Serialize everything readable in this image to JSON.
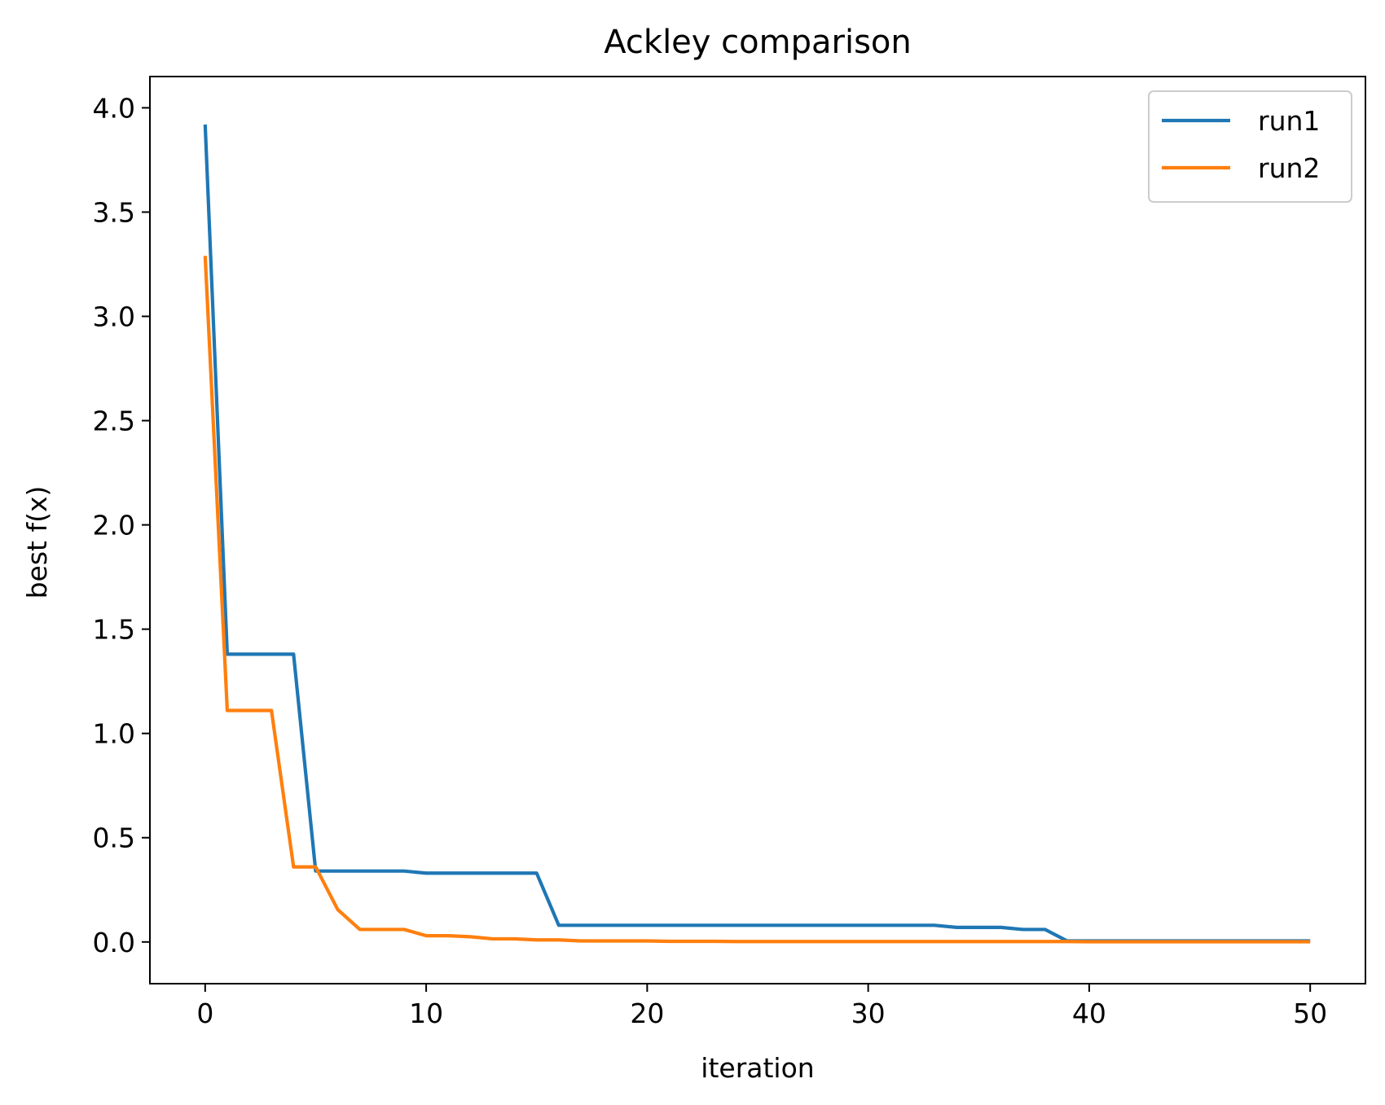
{
  "chart_data": {
    "type": "line",
    "title": "Ackley comparison",
    "xlabel": "iteration",
    "ylabel": "best f(x)",
    "xlim": [
      -2.5,
      52.5
    ],
    "ylim": [
      -0.2,
      4.15
    ],
    "xticks": [
      0,
      10,
      20,
      30,
      40,
      50
    ],
    "yticks": [
      0.0,
      0.5,
      1.0,
      1.5,
      2.0,
      2.5,
      3.0,
      3.5,
      4.0
    ],
    "ytick_labels": [
      "0.0",
      "0.5",
      "1.0",
      "1.5",
      "2.0",
      "2.5",
      "3.0",
      "3.5",
      "4.0"
    ],
    "grid": false,
    "legend_position": "top-right",
    "series": [
      {
        "name": "run1",
        "color": "#1f77b4",
        "x": [
          0,
          1,
          2,
          3,
          4,
          5,
          6,
          7,
          8,
          9,
          10,
          11,
          12,
          13,
          14,
          15,
          16,
          17,
          18,
          19,
          20,
          21,
          22,
          23,
          24,
          25,
          26,
          27,
          28,
          29,
          30,
          31,
          32,
          33,
          34,
          35,
          36,
          37,
          38,
          39,
          40,
          41,
          42,
          43,
          44,
          45,
          46,
          47,
          48,
          49,
          50
        ],
        "y": [
          3.92,
          1.38,
          1.38,
          1.38,
          1.38,
          0.34,
          0.34,
          0.34,
          0.34,
          0.34,
          0.33,
          0.33,
          0.33,
          0.33,
          0.33,
          0.33,
          0.08,
          0.08,
          0.08,
          0.08,
          0.08,
          0.08,
          0.08,
          0.08,
          0.08,
          0.08,
          0.08,
          0.08,
          0.08,
          0.08,
          0.08,
          0.08,
          0.08,
          0.08,
          0.07,
          0.07,
          0.07,
          0.06,
          0.06,
          0.005,
          0.005,
          0.005,
          0.005,
          0.005,
          0.005,
          0.005,
          0.005,
          0.005,
          0.005,
          0.005,
          0.005
        ]
      },
      {
        "name": "run2",
        "color": "#ff7f0e",
        "x": [
          0,
          1,
          2,
          3,
          4,
          5,
          6,
          7,
          8,
          9,
          10,
          11,
          12,
          13,
          14,
          15,
          16,
          17,
          18,
          19,
          20,
          21,
          22,
          23,
          24,
          25,
          26,
          27,
          28,
          29,
          30,
          31,
          32,
          33,
          34,
          35,
          36,
          37,
          38,
          39,
          40,
          41,
          42,
          43,
          44,
          45,
          46,
          47,
          48,
          49,
          50
        ],
        "y": [
          3.29,
          1.11,
          1.11,
          1.11,
          0.36,
          0.36,
          0.155,
          0.06,
          0.06,
          0.06,
          0.03,
          0.03,
          0.025,
          0.015,
          0.015,
          0.01,
          0.01,
          0.005,
          0.005,
          0.005,
          0.005,
          0.003,
          0.003,
          0.003,
          0.002,
          0.002,
          0.002,
          0.002,
          0.002,
          0.002,
          0.002,
          0.002,
          0.002,
          0.002,
          0.002,
          0.002,
          0.002,
          0.002,
          0.002,
          0.002,
          0.001,
          0.001,
          0.001,
          0.001,
          0.001,
          0.001,
          0.001,
          0.001,
          0.001,
          0.001,
          0.001
        ]
      }
    ]
  }
}
